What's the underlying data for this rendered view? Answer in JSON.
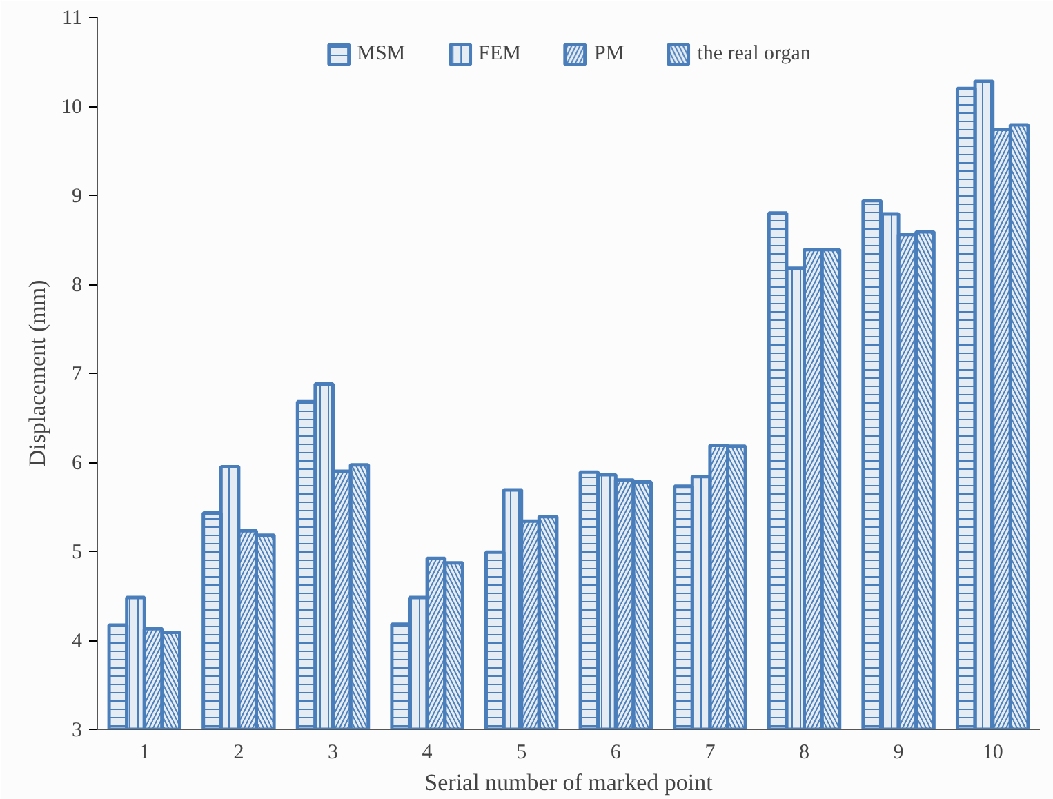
{
  "chart_data": {
    "type": "bar",
    "xlabel": "Serial number of marked point",
    "ylabel": "Displacement (mm)",
    "categories": [
      "1",
      "2",
      "3",
      "4",
      "5",
      "6",
      "7",
      "8",
      "9",
      "10"
    ],
    "series": [
      {
        "name": "MSM",
        "color": "#4a7ebb",
        "values": [
          4.17,
          5.43,
          6.68,
          4.18,
          4.99,
          5.89,
          5.73,
          8.8,
          8.94,
          10.2
        ]
      },
      {
        "name": "FEM",
        "color": "#4a7ebb",
        "values": [
          4.48,
          5.95,
          6.88,
          4.48,
          5.69,
          5.86,
          5.84,
          8.18,
          8.79,
          10.28
        ]
      },
      {
        "name": "PM",
        "color": "#4a7ebb",
        "values": [
          4.13,
          5.23,
          5.9,
          4.92,
          5.34,
          5.8,
          6.19,
          8.39,
          8.56,
          9.74
        ]
      },
      {
        "name": "the real organ",
        "color": "#4a7ebb",
        "values": [
          4.09,
          5.18,
          5.97,
          4.87,
          5.39,
          5.78,
          6.18,
          8.39,
          8.59,
          9.79
        ]
      }
    ],
    "ylim": [
      3,
      11
    ],
    "yticks": [
      3,
      4,
      5,
      6,
      7,
      8,
      9,
      10,
      11
    ],
    "grid": false,
    "legend": "top"
  }
}
